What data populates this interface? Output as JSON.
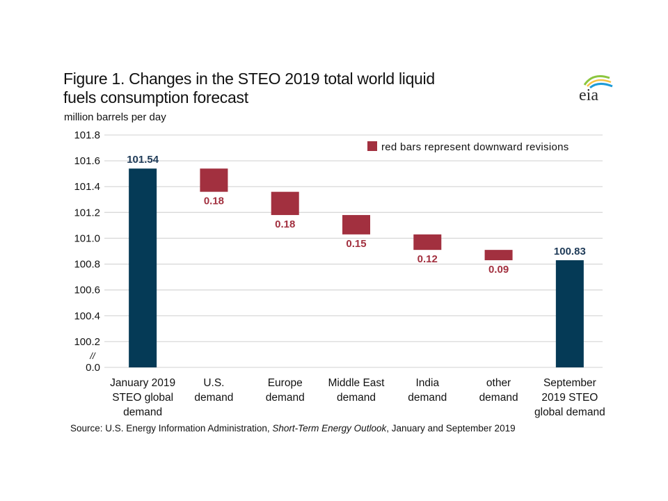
{
  "header": {
    "title_line1": "Figure 1. Changes in the STEO 2019 total world liquid",
    "title_line2": "fuels consumption forecast",
    "units": "million barrels per day",
    "logo_text": "eia",
    "logo_icon": "eia-logo-icon"
  },
  "colors": {
    "total_bar": "#053a56",
    "revision_bar": "#a2303f",
    "total_label": "#1e3a57",
    "revision_label": "#a2303f",
    "gridline": "#d9d9d9"
  },
  "source": {
    "prefix": "Source: U.S. Energy Information Administration, ",
    "italic": "Short-Term Energy Outlook",
    "suffix": ", January and September 2019"
  },
  "chart_data": {
    "type": "bar",
    "subtype": "waterfall",
    "title": "Figure 1. Changes in the STEO 2019 total world liquid fuels consumption forecast",
    "ylabel": "million barrels per day",
    "xlabel": "",
    "ylim": [
      100.0,
      101.8
    ],
    "axis_break": true,
    "axis_break_marker": "//",
    "yticks": [
      "101.8",
      "101.6",
      "101.4",
      "101.2",
      "101.0",
      "100.8",
      "100.6",
      "100.4",
      "100.2",
      "0.0"
    ],
    "grid": true,
    "legend": {
      "position": "top-right",
      "entries": [
        {
          "label": "red bars represent downward revisions",
          "color": "#a2303f"
        }
      ]
    },
    "categories": [
      [
        "January 2019",
        "STEO global",
        "demand"
      ],
      [
        "U.S.",
        "demand"
      ],
      [
        "Europe",
        "demand"
      ],
      [
        "Middle East",
        "demand"
      ],
      [
        "India",
        "demand"
      ],
      [
        "other",
        "demand"
      ],
      [
        "September",
        "2019 STEO",
        "global demand"
      ]
    ],
    "bars": [
      {
        "kind": "total",
        "start": 0.0,
        "end": 101.54,
        "label": "101.54"
      },
      {
        "kind": "revision",
        "start": 101.54,
        "end": 101.36,
        "label": "0.18"
      },
      {
        "kind": "revision",
        "start": 101.36,
        "end": 101.18,
        "label": "0.18"
      },
      {
        "kind": "revision",
        "start": 101.18,
        "end": 101.03,
        "label": "0.15"
      },
      {
        "kind": "revision",
        "start": 101.03,
        "end": 100.91,
        "label": "0.12"
      },
      {
        "kind": "revision",
        "start": 100.91,
        "end": 100.83,
        "label": "0.09"
      },
      {
        "kind": "total",
        "start": 0.0,
        "end": 100.83,
        "label": "100.83"
      }
    ],
    "values": [
      101.54,
      -0.18,
      -0.18,
      -0.15,
      -0.12,
      -0.09,
      100.83
    ]
  }
}
